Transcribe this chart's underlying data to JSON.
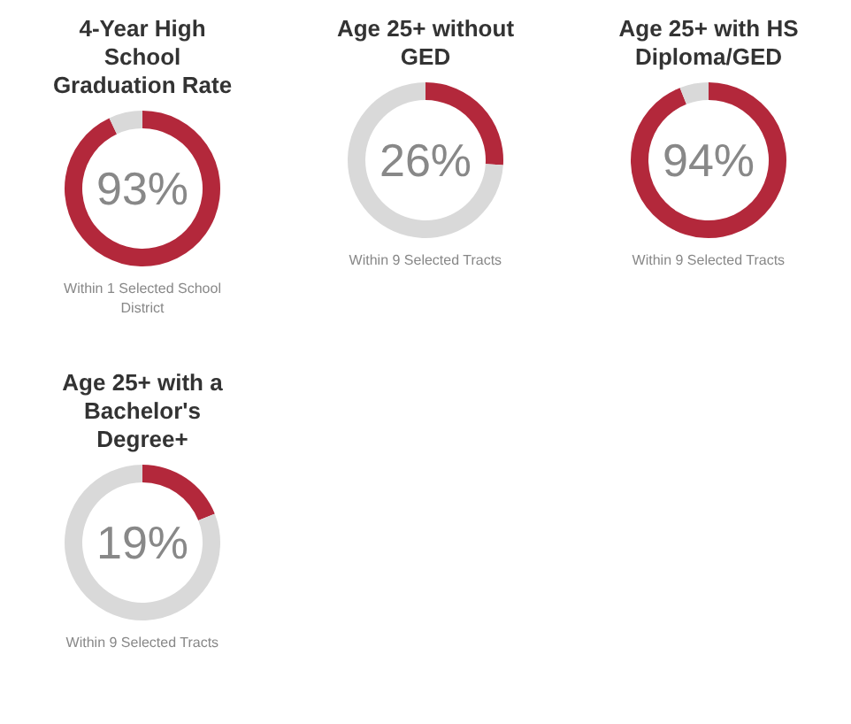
{
  "chart_data": [
    {
      "type": "donut",
      "title": "4-Year High School Graduation Rate",
      "categories": [
        null,
        null
      ],
      "values": [
        93,
        7
      ],
      "colors": [
        "#b3283b",
        "#d9d9d9"
      ],
      "value_labels": [
        "93%",
        null
      ],
      "annotations": [
        "Within 1 Selected School District"
      ]
    },
    {
      "type": "donut",
      "title": "Age 25+ without GED",
      "categories": [
        null,
        null
      ],
      "values": [
        26,
        74
      ],
      "colors": [
        "#b3283b",
        "#d9d9d9"
      ],
      "value_labels": [
        "26%",
        null
      ],
      "annotations": [
        "Within 9 Selected Tracts"
      ]
    },
    {
      "type": "donut",
      "title": "Age 25+ with HS Diploma/GED",
      "categories": [
        null,
        null
      ],
      "values": [
        94,
        6
      ],
      "colors": [
        "#b3283b",
        "#d9d9d9"
      ],
      "value_labels": [
        "94%",
        null
      ],
      "annotations": [
        "Within 9 Selected Tracts"
      ]
    },
    {
      "type": "donut",
      "title": "Age 25+ with a Bachelor's Degree+",
      "categories": [
        null,
        null
      ],
      "values": [
        19,
        81
      ],
      "colors": [
        "#b3283b",
        "#d9d9d9"
      ],
      "value_labels": [
        "19%",
        null
      ],
      "annotations": [
        "Within 9 Selected Tracts"
      ]
    }
  ]
}
